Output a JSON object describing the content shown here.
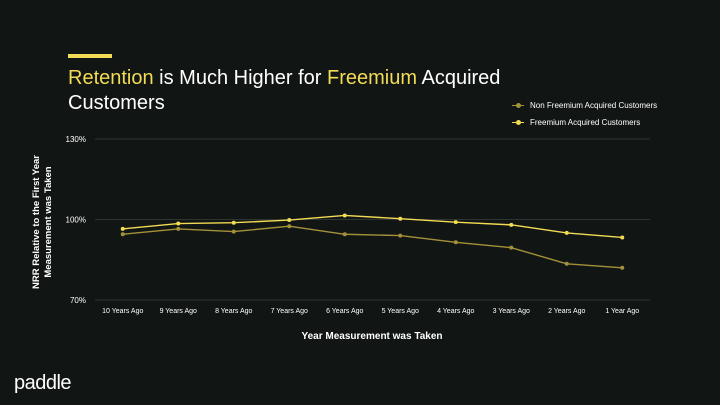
{
  "slide": {
    "title_parts": [
      "Retention",
      " is Much Higher for ",
      "Freemium",
      " Acquired Customers"
    ],
    "brand": "paddle"
  },
  "colors": {
    "background": "#111514",
    "accent": "#f2db55",
    "series_non_freemium": "#a3913a",
    "series_freemium": "#f2db55",
    "grid": "#3a3f3d"
  },
  "chart_data": {
    "type": "line",
    "title": "Retention is Much Higher for Freemium Acquired Customers",
    "xlabel": "Year Measurement was Taken",
    "ylabel": "NRR Relative to the First Year\nMeasurement was Taken",
    "categories": [
      "10 Years Ago",
      "9 Years Ago",
      "8 Years Ago",
      "7 Years Ago",
      "6 Years Ago",
      "5 Years Ago",
      "4 Years Ago",
      "3 Years Ago",
      "2 Years Ago",
      "1 Year Ago"
    ],
    "ylim": [
      70,
      130
    ],
    "yticks": [
      70,
      100,
      130
    ],
    "ytick_labels": [
      "70%",
      "100%",
      "130%"
    ],
    "grid": "horizontal",
    "legend_position": "top-right",
    "series": [
      {
        "name": "Non Freemium Acquired Customers",
        "color": "#a3913a",
        "values": [
          94.5,
          96.5,
          95.5,
          97.5,
          94.5,
          94,
          91.5,
          89.5,
          83.5,
          82
        ]
      },
      {
        "name": "Freemium Acquired Customers",
        "color": "#f2db55",
        "values": [
          96.5,
          98.5,
          98.8,
          99.8,
          101.5,
          100.3,
          99,
          98,
          95,
          93.3
        ]
      }
    ]
  }
}
